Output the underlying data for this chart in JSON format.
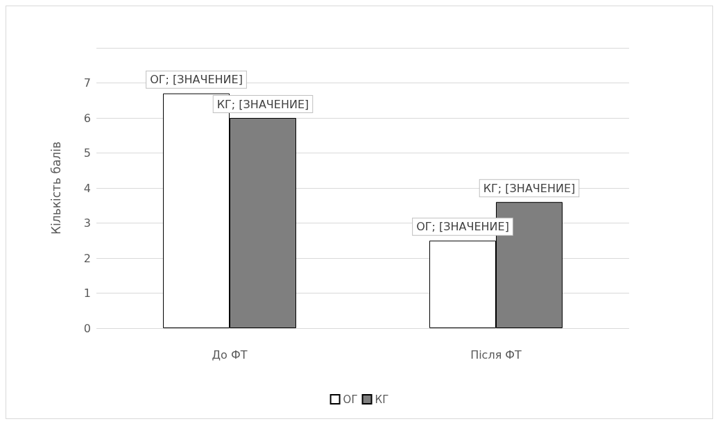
{
  "chart_data": {
    "type": "bar",
    "ylabel": "Кількість балів",
    "categories": [
      "До ФТ",
      "Після ФТ"
    ],
    "series": [
      {
        "name": "ОГ",
        "color": "#ffffff",
        "values": [
          6.7,
          2.5
        ],
        "value_labels": [
          "ОГ; [ЗНАЧЕНИЕ]",
          "ОГ; [ЗНАЧЕНИЕ]"
        ]
      },
      {
        "name": "КГ",
        "color": "#7f7f7f",
        "values": [
          6.0,
          3.6
        ],
        "value_labels": [
          "КГ; [ЗНАЧЕНИЕ]",
          "КГ; [ЗНАЧЕНИЕ]"
        ]
      }
    ],
    "ylim": [
      0,
      8
    ],
    "yticks": [
      0,
      1,
      2,
      3,
      4,
      5,
      6,
      7,
      {
        "value": 8,
        "label": null
      }
    ],
    "grid": "y",
    "legend": "bottom"
  }
}
